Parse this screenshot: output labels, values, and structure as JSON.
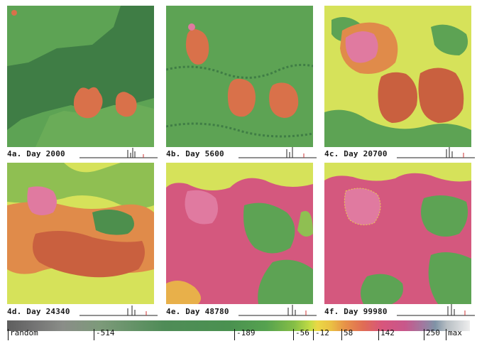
{
  "panels": [
    {
      "caption": "4a. Day 2000"
    },
    {
      "caption": "4b. Day 5600"
    },
    {
      "caption": "4c. Day 20700"
    },
    {
      "caption": "4d. Day 24340"
    },
    {
      "caption": "4e. Day 48780"
    },
    {
      "caption": "4f. Day 99980"
    }
  ],
  "colorbar": {
    "labels": [
      "random",
      "-514",
      "-189",
      "-56",
      "-12",
      "58",
      "142",
      "250",
      "max"
    ]
  },
  "colors": {
    "dark_green": "#3f7d45",
    "mid_green": "#5da354",
    "light_green": "#7db85a",
    "yellow_green": "#d6e25a",
    "orange": "#e0824a",
    "red_orange": "#c9603f",
    "pink": "#d4587e",
    "light_pink": "#e07aa0",
    "yellow": "#e8d24a"
  }
}
